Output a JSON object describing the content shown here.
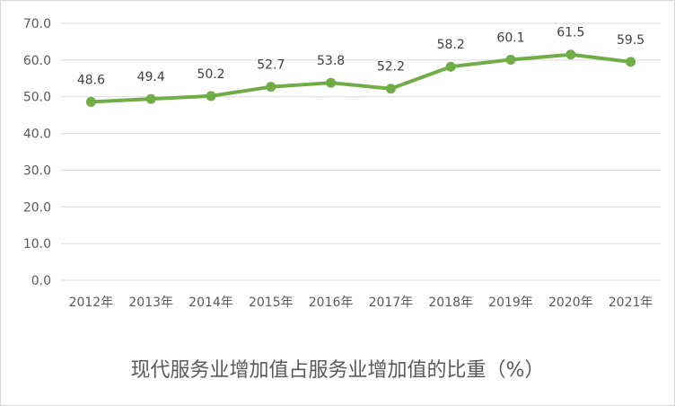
{
  "chart_data": {
    "type": "line",
    "title": "现代服务业增加值占服务业增加值的比重（%）",
    "categories": [
      "2012年",
      "2013年",
      "2014年",
      "2015年",
      "2016年",
      "2017年",
      "2018年",
      "2019年",
      "2020年",
      "2021年"
    ],
    "series": [
      {
        "values": [
          48.6,
          49.4,
          50.2,
          52.7,
          53.8,
          52.2,
          58.2,
          60.1,
          61.5,
          59.5
        ],
        "data_labels": [
          "48.6",
          "49.4",
          "50.2",
          "52.7",
          "53.8",
          "52.2",
          "58.2",
          "60.1",
          "61.5",
          "59.5"
        ],
        "color": "#70ad47"
      }
    ],
    "y_ticks": [
      "0.0",
      "10.0",
      "20.0",
      "30.0",
      "40.0",
      "50.0",
      "60.0",
      "70.0"
    ],
    "ylim": [
      0,
      70
    ],
    "grid": true,
    "legend": "none"
  },
  "colors": {
    "series": "#70ad47",
    "grid": "#d9d9d9",
    "text": "#595959"
  }
}
